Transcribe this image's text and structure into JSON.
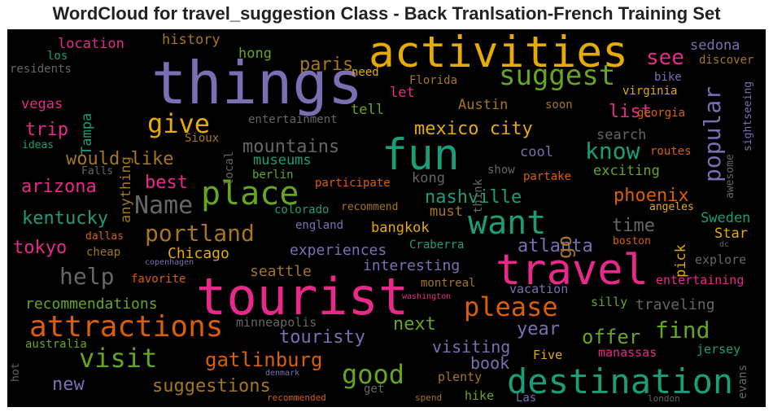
{
  "title": "WordCloud for travel_suggestion Class - Back Tranlsation-French Training Set",
  "colors": {
    "purple": "#7b6fb3",
    "pink": "#e7298a",
    "green": "#1b9e77",
    "orange": "#d95f02",
    "gold": "#e6ab02",
    "olive": "#66a61e",
    "brown": "#a6761d",
    "gray": "#666666",
    "background": "#000000"
  },
  "words": {
    "things": "things",
    "tourist": "tourist",
    "activities": "activities",
    "fun": "fun",
    "travel": "travel",
    "destination": "destination",
    "place": "place",
    "attractions": "attractions",
    "want": "want",
    "suggest": "suggest",
    "give": "give",
    "Name": "Name",
    "please": "please",
    "good": "good",
    "visit": "visit",
    "portland": "portland",
    "help": "help",
    "know": "know",
    "popular": "popular",
    "mexico_city": "mexico city",
    "find": "find",
    "suggestions": "suggestions",
    "gatlinburg": "gatlinburg",
    "touristy": "touristy",
    "mountains": "mountains",
    "arizona": "arizona",
    "nashville": "nashville",
    "phoenix": "phoenix",
    "atlanta": "atlanta",
    "offer": "offer",
    "see": "see",
    "trip": "trip",
    "kentucky": "kentucky",
    "tokyo": "tokyo",
    "would_like": "would like",
    "best": "best",
    "paris": "paris",
    "go": "go",
    "list": "list",
    "next": "next",
    "year": "year",
    "visiting": "visiting",
    "book": "book",
    "new": "new",
    "time": "time",
    "Chicago": "Chicago",
    "recommendations": "recommendations",
    "experiences": "experiences",
    "interesting": "interesting",
    "seattle": "seattle",
    "traveling": "traveling",
    "location": "location",
    "history": "history",
    "hong": "hong",
    "kong": "kong",
    "sedona": "sedona",
    "discover": "discover",
    "Tampa": "Tampa",
    "vegas": "vegas",
    "anything": "anything",
    "let": "let",
    "tell": "tell",
    "Austin": "Austin",
    "search": "search",
    "cool": "cool",
    "exciting": "exciting",
    "museums": "museums",
    "berlin": "berlin",
    "bangkok": "bangkok",
    "must": "must",
    "Sweden": "Sweden",
    "Star": "Star",
    "pick": "pick",
    "explore": "explore",
    "entertaining": "entertaining",
    "vacation": "vacation",
    "silly": "silly",
    "Five": "Five",
    "manassas": "manassas",
    "jersey": "jersey",
    "evans": "evans",
    "plenty": "plenty",
    "hike": "hike",
    "Las": "Las",
    "get": "get",
    "spend": "spend",
    "recommended": "recommended",
    "london": "london",
    "australia": "australia",
    "minneapolis": "minneapolis",
    "montreal": "montreal",
    "washington": "washington",
    "favorite": "favorite",
    "copenhagen": "copenhagen",
    "cheap": "cheap",
    "dallas": "dallas",
    "Craberra": "Craberra",
    "england": "england",
    "colorado": "colorado",
    "recommend": "recommend",
    "participate": "participate",
    "partake": "partake",
    "show": "show",
    "think": "think",
    "local": "local",
    "Falls": "Falls",
    "Sioux": "Sioux",
    "ideas": "ideas",
    "residents": "residents",
    "los": "los",
    "need": "need",
    "Florida": "Florida",
    "soon": "soon",
    "entertainment": "entertainment",
    "bike": "bike",
    "virginia": "virginia",
    "georgia": "georgia",
    "sightseeing": "sightseeing",
    "routes": "routes",
    "awesome": "awesome",
    "angeles": "angeles",
    "boston": "boston",
    "dc": "dc",
    "denmark": "denmark",
    "hot": "hot"
  }
}
